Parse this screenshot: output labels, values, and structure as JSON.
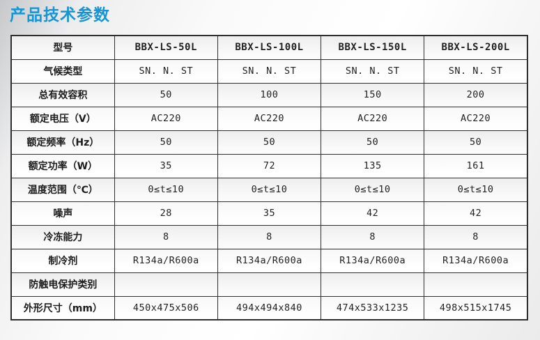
{
  "page": {
    "title": "产品技术参数"
  },
  "colors": {
    "accent_blue": "#1595d3",
    "table_border": "#2e2e2e",
    "row_shade": "#ededed"
  },
  "table": {
    "rows": [
      {
        "label": "型号",
        "values": [
          "BBX-LS-50L",
          "BBX-LS-100L",
          "BBX-LS-150L",
          "BBX-LS-200L"
        ]
      },
      {
        "label": "气候类型",
        "values": [
          "SN. N. ST",
          "SN. N. ST",
          "SN. N. ST",
          "SN. N. ST"
        ]
      },
      {
        "label": "总有效容积",
        "values": [
          "50",
          "100",
          "150",
          "200"
        ]
      },
      {
        "label": "额定电压（V）",
        "values": [
          "AC220",
          "AC220",
          "AC220",
          "AC220"
        ]
      },
      {
        "label": "额定频率（Hz）",
        "values": [
          "50",
          "50",
          "50",
          "50"
        ]
      },
      {
        "label": "额定功率（W）",
        "values": [
          "35",
          "72",
          "135",
          "161"
        ]
      },
      {
        "label": "温度范围（℃）",
        "values": [
          "0≤t≤10",
          "0≤t≤10",
          "0≤t≤10",
          "0≤t≤10"
        ]
      },
      {
        "label": "噪声",
        "values": [
          "28",
          "35",
          "42",
          "42"
        ]
      },
      {
        "label": "冷冻能力",
        "values": [
          "8",
          "8",
          "8",
          "8"
        ]
      },
      {
        "label": "制冷剂",
        "values": [
          "R134a/R600a",
          "R134a/R600a",
          "R134a/R600a",
          "R134a/R600a"
        ]
      },
      {
        "label": "防触电保护类别",
        "values": [
          "",
          "",
          "",
          ""
        ]
      },
      {
        "label": "外形尺寸（mm）",
        "values": [
          "450x475x506",
          "494x494x840",
          "474x533x1235",
          "498x515x1745"
        ]
      }
    ]
  }
}
